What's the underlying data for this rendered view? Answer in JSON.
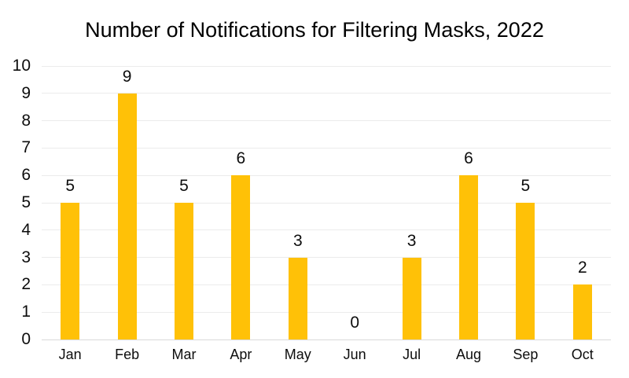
{
  "chart_data": {
    "type": "bar",
    "title": "Number of Notifications for Filtering Masks, 2022",
    "categories": [
      "Jan",
      "Feb",
      "Mar",
      "Apr",
      "May",
      "Jun",
      "Jul",
      "Aug",
      "Sep",
      "Oct"
    ],
    "values": [
      5,
      9,
      5,
      6,
      3,
      0,
      3,
      6,
      5,
      2
    ],
    "data_labels": true,
    "xlabel": "",
    "ylabel": "",
    "ylim": [
      0,
      10
    ],
    "yticks": [
      0,
      1,
      2,
      3,
      4,
      5,
      6,
      7,
      8,
      9,
      10
    ],
    "grid": true,
    "legend": false,
    "colors": {
      "bar": "#FFC107",
      "gridline": "#ebebeb",
      "axis_line": "#d9d9d9",
      "title_text": "#000000",
      "label_text": "#0d0d0d",
      "background": "#ffffff"
    }
  }
}
